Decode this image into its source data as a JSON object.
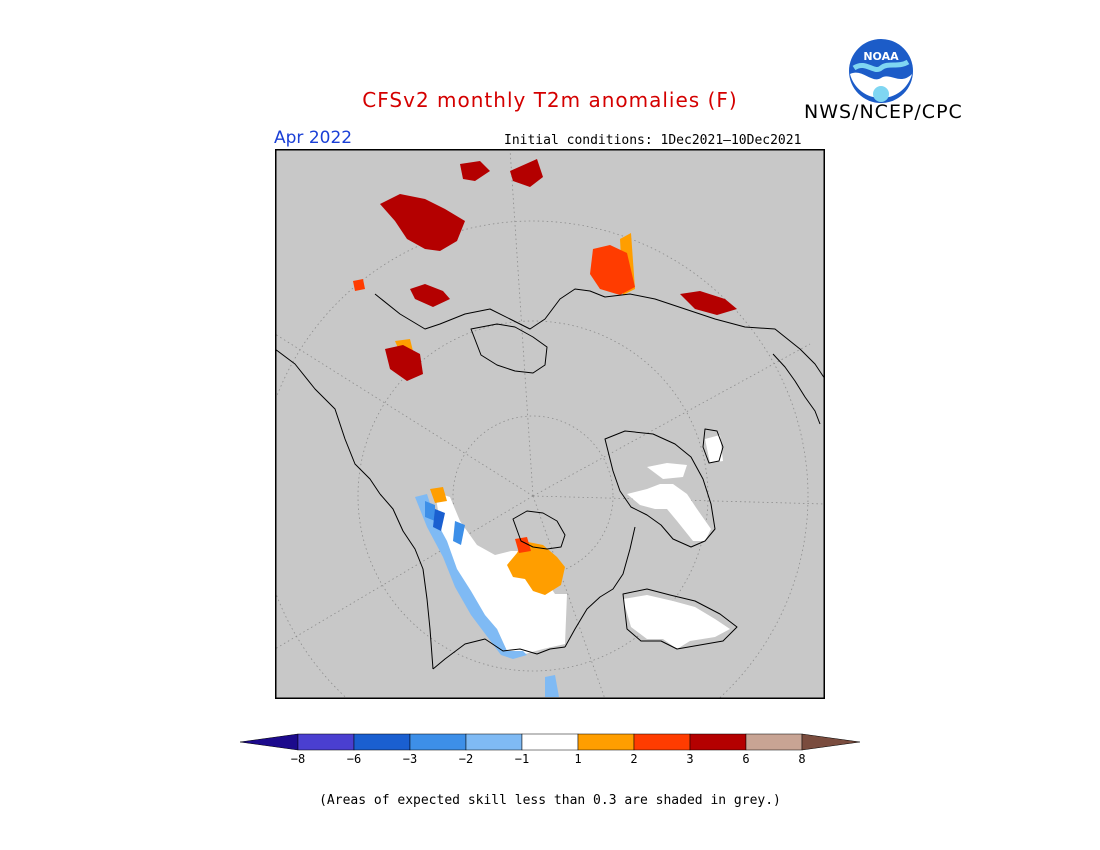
{
  "header": {
    "title": "CFSv2 monthly T2m anomalies (F)",
    "agency": "NWS/NCEP/CPC",
    "logo_text": "NOAA",
    "month": "Apr 2022",
    "initial_conditions": "Initial conditions: 1Dec2021—10Dec2021"
  },
  "colors": {
    "title": "#d40000",
    "month": "#1a3fd6",
    "map_background": "#c8c8c8",
    "coast": "#000000",
    "graticule": "#8c8c8c"
  },
  "legend": {
    "bins": [
      {
        "color": "#1c0a8c"
      },
      {
        "color": "#4a3fd0"
      },
      {
        "color": "#1a5fd0"
      },
      {
        "color": "#3d8fe8"
      },
      {
        "color": "#7fbaf4"
      },
      {
        "color": "#ffffff"
      },
      {
        "color": "#ff9e00"
      },
      {
        "color": "#ff3c00"
      },
      {
        "color": "#b40000"
      },
      {
        "color": "#c8a494"
      },
      {
        "color": "#7a4c3e"
      }
    ],
    "tick_labels": [
      "−8",
      "−6",
      "−3",
      "−2",
      "−1",
      "1",
      "2",
      "3",
      "6",
      "8"
    ]
  },
  "footnote": "(Areas of expected skill less than 0.3 are shaded in grey.)"
}
